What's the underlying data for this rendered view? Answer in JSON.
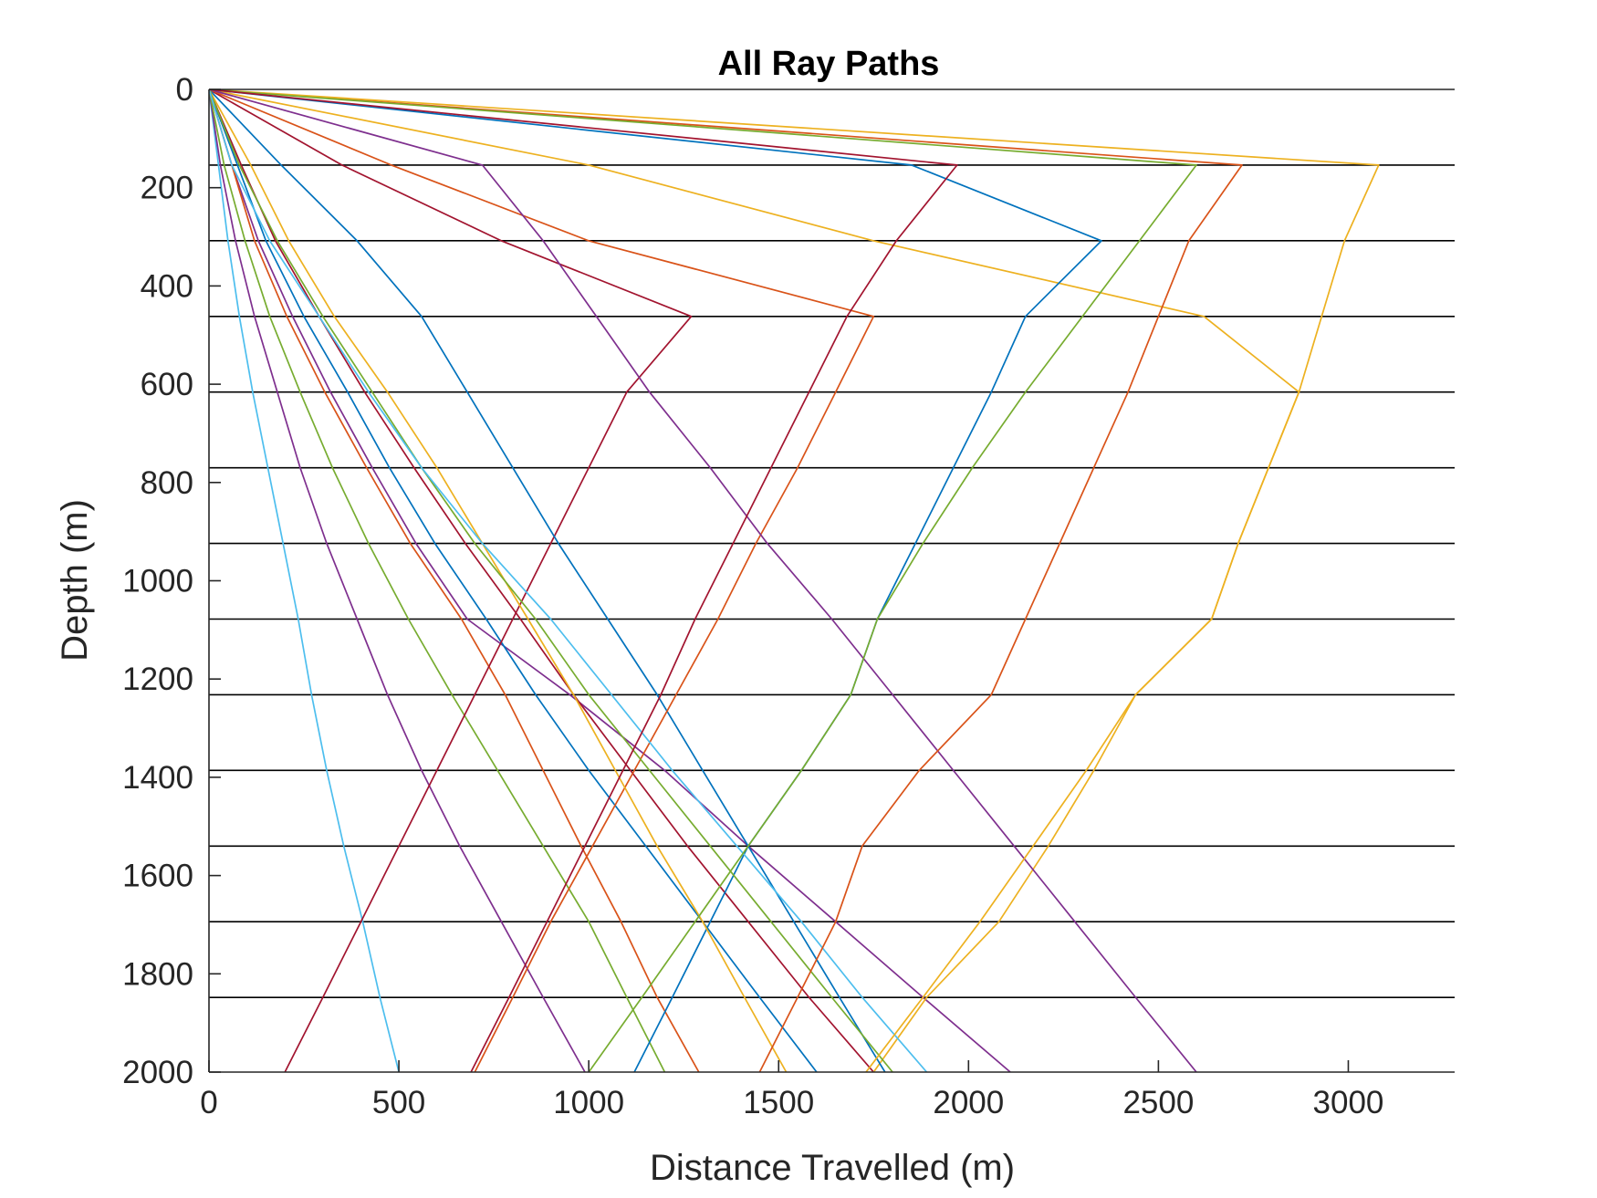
{
  "chart_data": {
    "type": "line",
    "title": "All Ray Paths",
    "xlabel": "Distance Travelled (m)",
    "ylabel": "Depth (m)",
    "xlim": [
      0,
      3280
    ],
    "ylim": [
      2000,
      0
    ],
    "y_direction": "reversed (depth increases downward)",
    "xticks": [
      0,
      500,
      1000,
      1500,
      2000,
      2500,
      3000
    ],
    "yticks": [
      0,
      200,
      400,
      600,
      800,
      1000,
      1200,
      1400,
      1600,
      1800,
      2000
    ],
    "layer_boundaries": [
      154,
      308,
      462,
      616,
      770,
      924,
      1078,
      1232,
      1386,
      1540,
      1694,
      1848
    ],
    "grid": false,
    "legend": "none",
    "series": [
      {
        "color": "#4DBEEE",
        "points": [
          [
            0,
            0
          ],
          [
            25,
            154
          ],
          [
            50,
            308
          ],
          [
            80,
            462
          ],
          [
            115,
            616
          ],
          [
            155,
            770
          ],
          [
            195,
            924
          ],
          [
            235,
            1078
          ],
          [
            270,
            1232
          ],
          [
            310,
            1386
          ],
          [
            355,
            1540
          ],
          [
            405,
            1694
          ],
          [
            450,
            1848
          ],
          [
            500,
            2000
          ]
        ]
      },
      {
        "color": "#7E2F8E",
        "points": [
          [
            0,
            0
          ],
          [
            30,
            154
          ],
          [
            70,
            308
          ],
          [
            120,
            462
          ],
          [
            180,
            616
          ],
          [
            240,
            770
          ],
          [
            310,
            924
          ],
          [
            390,
            1078
          ],
          [
            470,
            1232
          ],
          [
            560,
            1386
          ],
          [
            660,
            1540
          ],
          [
            770,
            1694
          ],
          [
            880,
            1848
          ],
          [
            990,
            2000
          ]
        ]
      },
      {
        "color": "#77AC30",
        "points": [
          [
            0,
            0
          ],
          [
            40,
            154
          ],
          [
            95,
            308
          ],
          [
            160,
            462
          ],
          [
            240,
            616
          ],
          [
            325,
            770
          ],
          [
            420,
            924
          ],
          [
            525,
            1078
          ],
          [
            640,
            1232
          ],
          [
            760,
            1386
          ],
          [
            880,
            1540
          ],
          [
            1000,
            1694
          ],
          [
            1100,
            1848
          ],
          [
            1200,
            2000
          ]
        ]
      },
      {
        "color": "#7E2F8E",
        "points": [
          [
            0,
            0
          ],
          [
            60,
            154
          ],
          [
            130,
            308
          ],
          [
            220,
            462
          ],
          [
            320,
            616
          ],
          [
            430,
            770
          ],
          [
            545,
            924
          ],
          [
            680,
            1078
          ],
          [
            950,
            1232
          ],
          [
            1200,
            1386
          ],
          [
            1420,
            1540
          ],
          [
            1650,
            1694
          ],
          [
            1880,
            1848
          ],
          [
            2110,
            2000
          ]
        ]
      },
      {
        "color": "#D95319",
        "points": [
          [
            0,
            0
          ],
          [
            60,
            154
          ],
          [
            120,
            308
          ],
          [
            205,
            462
          ],
          [
            305,
            616
          ],
          [
            415,
            770
          ],
          [
            530,
            924
          ],
          [
            665,
            1078
          ],
          [
            780,
            1232
          ],
          [
            880,
            1386
          ],
          [
            980,
            1540
          ],
          [
            1085,
            1694
          ],
          [
            1180,
            1848
          ],
          [
            1290,
            2000
          ]
        ]
      },
      {
        "color": "#0072BD",
        "points": [
          [
            0,
            0
          ],
          [
            75,
            154
          ],
          [
            150,
            308
          ],
          [
            250,
            462
          ],
          [
            365,
            616
          ],
          [
            475,
            770
          ],
          [
            595,
            924
          ],
          [
            730,
            1078
          ],
          [
            860,
            1232
          ],
          [
            1000,
            1386
          ],
          [
            1150,
            1540
          ],
          [
            1300,
            1694
          ],
          [
            1450,
            1848
          ],
          [
            1600,
            2000
          ]
        ]
      },
      {
        "color": "#A2142F",
        "points": [
          [
            0,
            0
          ],
          [
            85,
            154
          ],
          [
            175,
            308
          ],
          [
            290,
            462
          ],
          [
            410,
            616
          ],
          [
            540,
            770
          ],
          [
            675,
            924
          ],
          [
            820,
            1078
          ],
          [
            960,
            1232
          ],
          [
            1110,
            1386
          ],
          [
            1260,
            1540
          ],
          [
            1420,
            1694
          ],
          [
            1580,
            1848
          ],
          [
            1750,
            2000
          ]
        ]
      },
      {
        "color": "#EDB120",
        "points": [
          [
            0,
            0
          ],
          [
            1000,
            154
          ],
          [
            1750,
            308
          ],
          [
            2620,
            462
          ],
          [
            2870,
            616
          ],
          [
            2790,
            770
          ],
          [
            2710,
            924
          ],
          [
            2640,
            1078
          ],
          [
            2440,
            1232
          ],
          [
            2330,
            1386
          ],
          [
            2210,
            1540
          ],
          [
            2080,
            1694
          ],
          [
            1890,
            1848
          ],
          [
            1750,
            2000
          ]
        ]
      },
      {
        "color": "#A2142F",
        "points": [
          [
            0,
            0
          ],
          [
            350,
            154
          ],
          [
            770,
            308
          ],
          [
            1270,
            462
          ],
          [
            1100,
            616
          ],
          [
            1000,
            770
          ],
          [
            900,
            924
          ],
          [
            800,
            1078
          ],
          [
            700,
            1232
          ],
          [
            600,
            1386
          ],
          [
            500,
            1540
          ],
          [
            400,
            1694
          ],
          [
            300,
            1848
          ],
          [
            200,
            2000
          ]
        ]
      },
      {
        "color": "#0072BD",
        "points": [
          [
            0,
            0
          ],
          [
            190,
            154
          ],
          [
            390,
            308
          ],
          [
            560,
            462
          ],
          [
            680,
            616
          ],
          [
            800,
            770
          ],
          [
            920,
            924
          ],
          [
            1050,
            1078
          ],
          [
            1180,
            1232
          ],
          [
            1300,
            1386
          ],
          [
            1420,
            1540
          ],
          [
            1540,
            1694
          ],
          [
            1660,
            1848
          ],
          [
            1780,
            2000
          ]
        ]
      },
      {
        "color": "#D95319",
        "points": [
          [
            0,
            0
          ],
          [
            480,
            154
          ],
          [
            1000,
            308
          ],
          [
            1750,
            462
          ],
          [
            1650,
            616
          ],
          [
            1550,
            770
          ],
          [
            1440,
            924
          ],
          [
            1340,
            1078
          ],
          [
            1230,
            1232
          ],
          [
            1120,
            1386
          ],
          [
            1010,
            1540
          ],
          [
            900,
            1694
          ],
          [
            800,
            1848
          ],
          [
            700,
            2000
          ]
        ]
      },
      {
        "color": "#0072BD",
        "points": [
          [
            0,
            0
          ],
          [
            1850,
            154
          ],
          [
            2350,
            308
          ],
          [
            2150,
            462
          ],
          [
            2060,
            616
          ],
          [
            1960,
            770
          ],
          [
            1860,
            924
          ],
          [
            1760,
            1078
          ],
          [
            1690,
            1232
          ],
          [
            1560,
            1386
          ],
          [
            1420,
            1540
          ],
          [
            1320,
            1694
          ],
          [
            1220,
            1848
          ],
          [
            1120,
            2000
          ]
        ]
      },
      {
        "color": "#EDB120",
        "points": [
          [
            0,
            0
          ],
          [
            110,
            154
          ],
          [
            210,
            308
          ],
          [
            330,
            462
          ],
          [
            470,
            616
          ],
          [
            600,
            770
          ],
          [
            720,
            924
          ],
          [
            840,
            1078
          ],
          [
            960,
            1232
          ],
          [
            1070,
            1386
          ],
          [
            1180,
            1540
          ],
          [
            1300,
            1694
          ],
          [
            1410,
            1848
          ],
          [
            1520,
            2000
          ]
        ]
      },
      {
        "color": "#77AC30",
        "points": [
          [
            0,
            0
          ],
          [
            80,
            154
          ],
          [
            180,
            308
          ],
          [
            300,
            462
          ],
          [
            430,
            616
          ],
          [
            560,
            770
          ],
          [
            700,
            924
          ],
          [
            860,
            1078
          ],
          [
            1000,
            1232
          ],
          [
            1160,
            1386
          ],
          [
            1320,
            1540
          ],
          [
            1480,
            1694
          ],
          [
            1640,
            1848
          ],
          [
            1800,
            2000
          ]
        ]
      },
      {
        "color": "#4DBEEE",
        "points": [
          [
            0,
            0
          ],
          [
            60,
            154
          ],
          [
            160,
            308
          ],
          [
            290,
            462
          ],
          [
            420,
            616
          ],
          [
            560,
            770
          ],
          [
            720,
            924
          ],
          [
            900,
            1078
          ],
          [
            1060,
            1232
          ],
          [
            1220,
            1386
          ],
          [
            1390,
            1540
          ],
          [
            1560,
            1694
          ],
          [
            1720,
            1848
          ],
          [
            1890,
            2000
          ]
        ]
      },
      {
        "color": "#7E2F8E",
        "points": [
          [
            0,
            0
          ],
          [
            720,
            154
          ],
          [
            880,
            308
          ],
          [
            1020,
            462
          ],
          [
            1160,
            616
          ],
          [
            1320,
            770
          ],
          [
            1470,
            924
          ],
          [
            1640,
            1078
          ],
          [
            1800,
            1232
          ],
          [
            1960,
            1386
          ],
          [
            2120,
            1540
          ],
          [
            2280,
            1694
          ],
          [
            2440,
            1848
          ],
          [
            2600,
            2000
          ]
        ]
      },
      {
        "color": "#D95319",
        "points": [
          [
            0,
            0
          ],
          [
            2720,
            154
          ],
          [
            2580,
            308
          ],
          [
            2500,
            462
          ],
          [
            2420,
            616
          ],
          [
            2330,
            770
          ],
          [
            2240,
            924
          ],
          [
            2150,
            1078
          ],
          [
            2060,
            1232
          ],
          [
            1870,
            1386
          ],
          [
            1720,
            1540
          ],
          [
            1650,
            1694
          ],
          [
            1550,
            1848
          ],
          [
            1450,
            2000
          ]
        ]
      },
      {
        "color": "#EDB120",
        "points": [
          [
            0,
            0
          ],
          [
            3080,
            154
          ],
          [
            2990,
            308
          ],
          [
            2930,
            462
          ],
          [
            2870,
            616
          ],
          [
            2790,
            770
          ],
          [
            2710,
            924
          ],
          [
            2640,
            1078
          ],
          [
            2440,
            1232
          ],
          [
            2310,
            1386
          ],
          [
            2170,
            1540
          ],
          [
            2030,
            1694
          ],
          [
            1880,
            1848
          ],
          [
            1730,
            2000
          ]
        ]
      },
      {
        "color": "#77AC30",
        "points": [
          [
            0,
            0
          ],
          [
            2600,
            154
          ],
          [
            2450,
            308
          ],
          [
            2300,
            462
          ],
          [
            2150,
            616
          ],
          [
            2010,
            770
          ],
          [
            1880,
            924
          ],
          [
            1760,
            1078
          ],
          [
            1690,
            1232
          ],
          [
            1560,
            1386
          ],
          [
            1420,
            1540
          ],
          [
            1280,
            1694
          ],
          [
            1140,
            1848
          ],
          [
            1000,
            2000
          ]
        ]
      },
      {
        "color": "#A2142F",
        "points": [
          [
            0,
            0
          ],
          [
            1970,
            154
          ],
          [
            1810,
            308
          ],
          [
            1680,
            462
          ],
          [
            1580,
            616
          ],
          [
            1480,
            770
          ],
          [
            1380,
            924
          ],
          [
            1280,
            1078
          ],
          [
            1190,
            1232
          ],
          [
            1090,
            1386
          ],
          [
            990,
            1540
          ],
          [
            890,
            1694
          ],
          [
            790,
            1848
          ],
          [
            690,
            2000
          ]
        ]
      }
    ]
  }
}
